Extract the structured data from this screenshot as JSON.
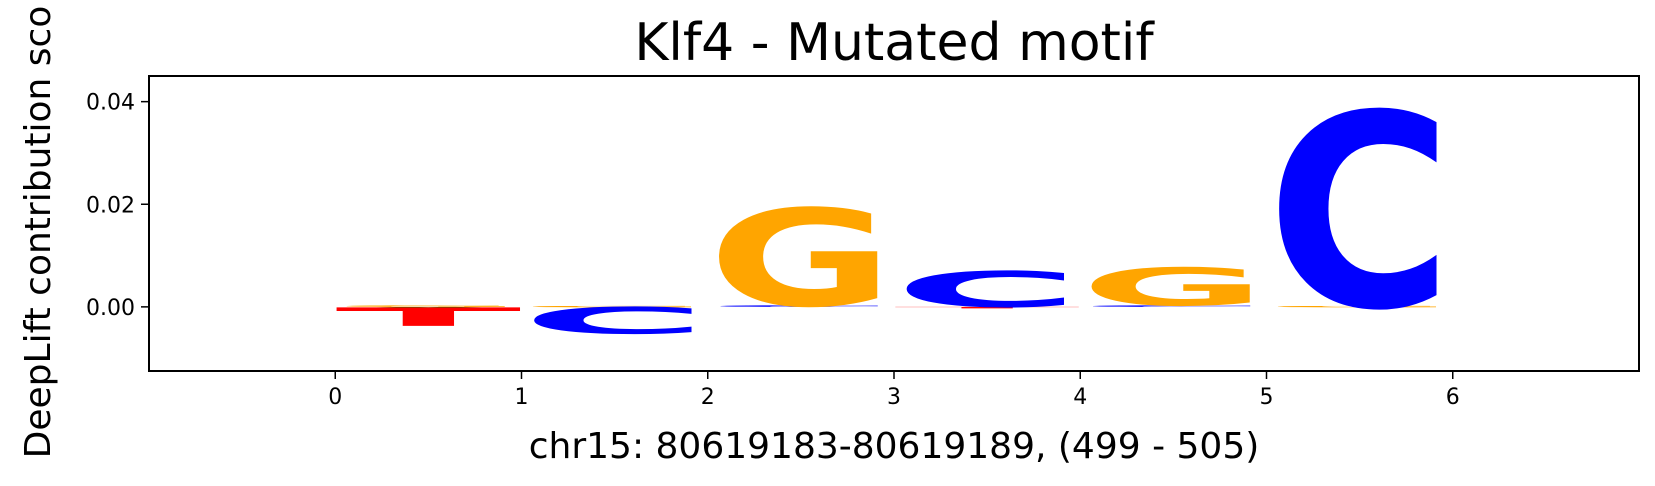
{
  "chart_data": {
    "type": "sequence-logo",
    "title": "Klf4 - Mutated motif",
    "xlabel": "chr15: 80619183-80619189, (499 - 505)",
    "ylabel": "DeepLift contribution sco",
    "xlim": [
      -1,
      7
    ],
    "ylim": [
      -0.0125,
      0.045
    ],
    "xticks": [
      "0",
      "1",
      "2",
      "3",
      "4",
      "5",
      "6"
    ],
    "yticks": [
      "0.00",
      "0.02",
      "0.04"
    ],
    "grid": false,
    "positions": [
      {
        "index": 0,
        "letters": [
          {
            "base": "A",
            "value": -0.0001,
            "color": "#008000"
          },
          {
            "base": "G",
            "value": 0.0003,
            "color": "#FFA500"
          },
          {
            "base": "T",
            "value": -0.0036,
            "color": "#FF0000"
          }
        ]
      },
      {
        "index": 1,
        "letters": [
          {
            "base": "G",
            "value": 0.0002,
            "color": "#FFA500"
          },
          {
            "base": "C",
            "value": -0.0052,
            "color": "#0000FF"
          }
        ]
      },
      {
        "index": 2,
        "letters": [
          {
            "base": "C",
            "value": 0.0003,
            "color": "#0000FF"
          },
          {
            "base": "G",
            "value": 0.019,
            "color": "#FFA500"
          }
        ]
      },
      {
        "index": 3,
        "letters": [
          {
            "base": "T",
            "value": -0.0001,
            "color": "#FF0000"
          },
          {
            "base": "C",
            "value": 0.007,
            "color": "#0000FF"
          }
        ]
      },
      {
        "index": 4,
        "letters": [
          {
            "base": "C",
            "value": 0.0003,
            "color": "#0000FF"
          },
          {
            "base": "G",
            "value": 0.0074,
            "color": "#FFA500"
          }
        ]
      },
      {
        "index": 5,
        "letters": [
          {
            "base": "G",
            "value": 0.0002,
            "color": "#FFA500"
          },
          {
            "base": "C",
            "value": 0.038,
            "color": "#0000FF"
          }
        ]
      }
    ]
  }
}
